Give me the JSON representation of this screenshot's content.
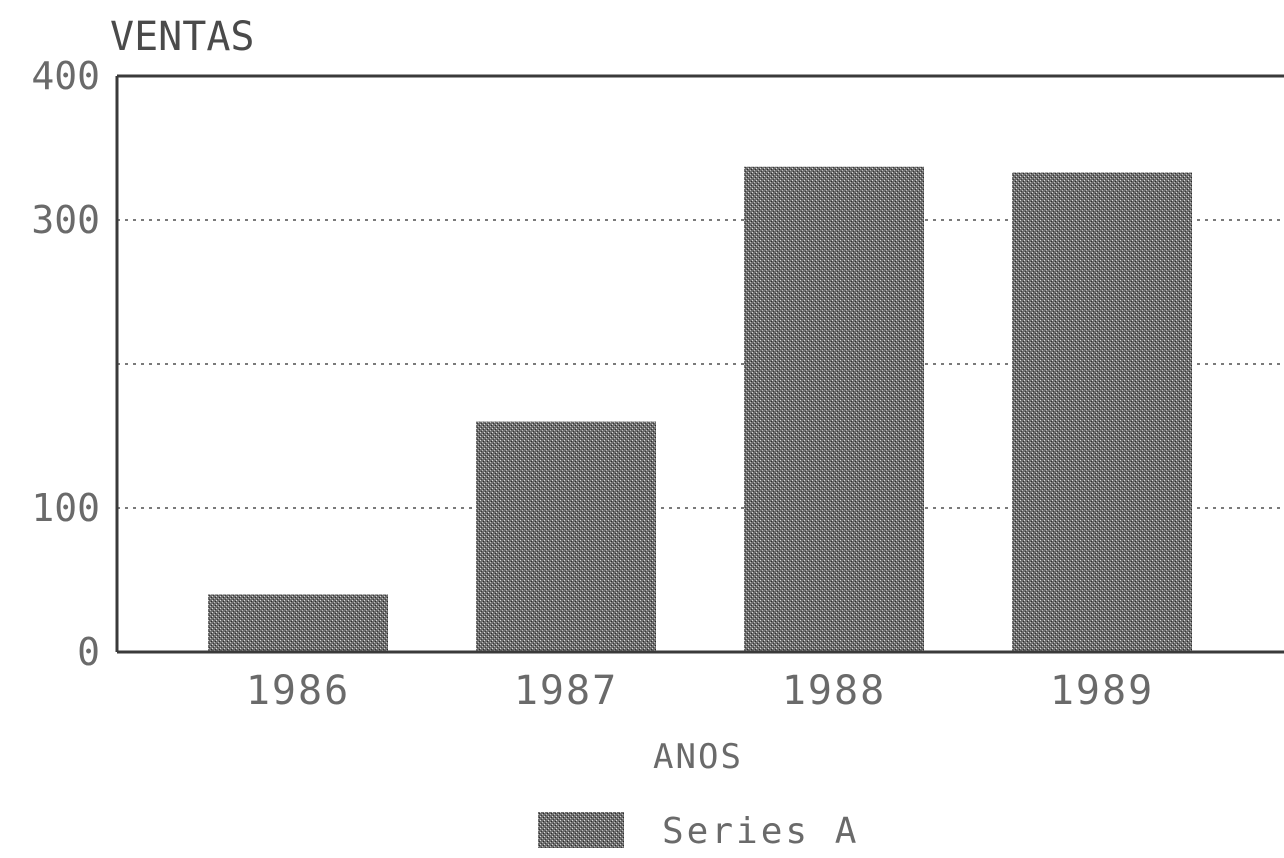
{
  "chart_data": {
    "type": "bar",
    "ylabel": "VENTAS",
    "xlabel": "ANOS",
    "categories": [
      "1986",
      "1987",
      "1988",
      "1989"
    ],
    "series": [
      {
        "name": "Series A",
        "values": [
          40,
          160,
          337,
          333
        ]
      }
    ],
    "ylim": [
      0,
      400
    ],
    "yticks": [
      "0",
      "100",
      "300",
      "400"
    ],
    "grid": true,
    "legend_position": "bottom-center",
    "bar_color": "#5a5a5a"
  }
}
